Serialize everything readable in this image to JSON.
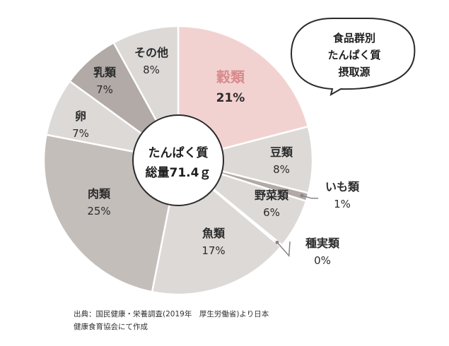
{
  "callout": {
    "lines": [
      "食品群別",
      "たんぱく質",
      "摂取源"
    ]
  },
  "center": {
    "line1": "たんぱく質",
    "line2": "総量71.4ｇ"
  },
  "colors": {
    "highlight": "#f2d2d0",
    "light": "#dcd9d7",
    "mid": "#b1aaa6",
    "dark": "#c4bebb",
    "highlight_text": "#d98a8c",
    "leader": "#8a8583"
  },
  "chart_data": {
    "type": "pie",
    "style": "donut",
    "center_text": [
      "たんぱく質",
      "総量71.4ｇ"
    ],
    "slices": [
      {
        "label": "穀類",
        "value": 21,
        "display": "21%"
      },
      {
        "label": "豆類",
        "value": 8,
        "display": "8%"
      },
      {
        "label": "いも類",
        "value": 1,
        "display": "1%"
      },
      {
        "label": "野菜類",
        "value": 6,
        "display": "6%"
      },
      {
        "label": "種実類",
        "value": 0,
        "display": "0%"
      },
      {
        "label": "魚類",
        "value": 17,
        "display": "17%"
      },
      {
        "label": "肉類",
        "value": 25,
        "display": "25%"
      },
      {
        "label": "卵",
        "value": 7,
        "display": "7%"
      },
      {
        "label": "乳類",
        "value": 7,
        "display": "7%"
      },
      {
        "label": "その他",
        "value": 8,
        "display": "8%"
      }
    ]
  },
  "source": {
    "line1": "出典：国民健康・栄養調査(2019年　厚生労働省)より日本",
    "line2": "健康食育協会にて作成"
  }
}
